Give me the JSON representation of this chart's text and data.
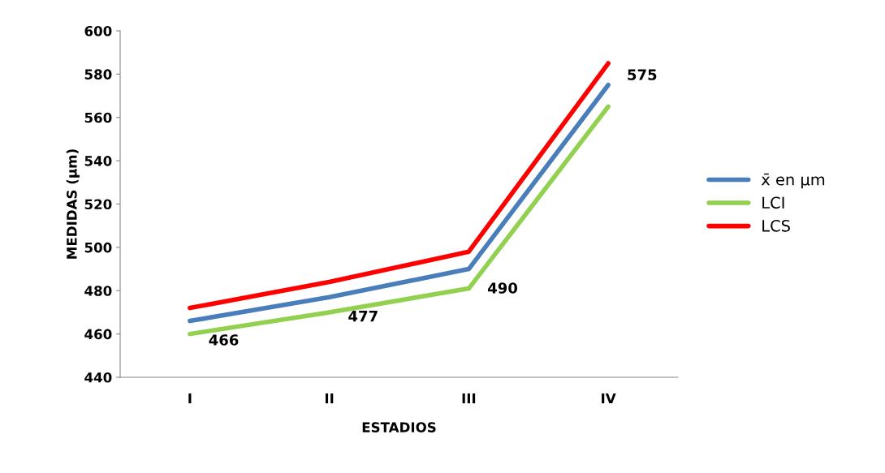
{
  "chart_data": {
    "type": "line",
    "xlabel": "ESTADIOS",
    "ylabel": "MEDIDAS (µm)",
    "categories": [
      "I",
      "II",
      "III",
      "IV"
    ],
    "series": [
      {
        "name": "x̄ en µm",
        "color": "#4a7ebb",
        "values": [
          466,
          477,
          490,
          575
        ],
        "value_labels": [
          "466",
          "477",
          "490",
          "575"
        ]
      },
      {
        "name": "LCI",
        "color": "#92d050",
        "values": [
          460,
          470,
          481,
          565
        ]
      },
      {
        "name": "LCS",
        "color": "#ff0000",
        "values": [
          472,
          484,
          498,
          585
        ]
      }
    ],
    "ylim": [
      440,
      600
    ],
    "yticks": [
      440,
      460,
      480,
      500,
      520,
      540,
      560,
      580,
      600
    ],
    "grid": false,
    "legend": "right",
    "marker": "none",
    "line_style": "solid"
  }
}
